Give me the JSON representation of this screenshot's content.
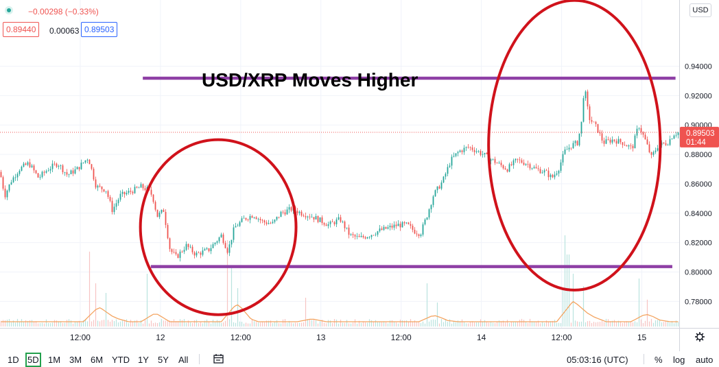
{
  "header": {
    "change": "−0.00298 (−0.33%)",
    "bid": "0.89440",
    "spread": "0.00063",
    "ask": "0.89503"
  },
  "currency_badge": "USD",
  "price_tag": {
    "price": "0.89503",
    "countdown": "01:44"
  },
  "toolbar": {
    "ranges": [
      "1D",
      "5D",
      "1M",
      "3M",
      "6M",
      "YTD",
      "1Y",
      "5Y",
      "All"
    ],
    "active_range": "5D",
    "clock": "05:03:16 (UTC)",
    "percent": "%",
    "log": "log",
    "auto": "auto"
  },
  "colors": {
    "up": "#26a69a",
    "down": "#ef5350",
    "box_down": "#ef5350",
    "box_up": "#2962ff",
    "line": "#8e3fa5",
    "circle": "#d0121b",
    "volume_ma": "#f4a460",
    "price_tag": "#ef5350"
  },
  "chart_data": {
    "type": "candlestick",
    "annotation_text": "USD/XRP Moves Higher",
    "y_ticks": [
      "0.94000",
      "0.92000",
      "0.90000",
      "0.88000",
      "0.86000",
      "0.84000",
      "0.82000",
      "0.80000",
      "0.78000"
    ],
    "ylim": [
      0.762,
      0.985
    ],
    "x_ticks": [
      {
        "label": "12:00",
        "x": 0.5
      },
      {
        "label": "12",
        "x": 1.0
      },
      {
        "label": "12:00",
        "x": 1.5
      },
      {
        "label": "13",
        "x": 2.0
      },
      {
        "label": "12:00",
        "x": 2.5
      },
      {
        "label": "14",
        "x": 3.0
      },
      {
        "label": "12:00",
        "x": 3.5
      },
      {
        "label": "15",
        "x": 4.0
      }
    ],
    "xlim": [
      0.0,
      4.233
    ],
    "close_series": [
      [
        0.0,
        0.868
      ],
      [
        0.03,
        0.852
      ],
      [
        0.07,
        0.862
      ],
      [
        0.12,
        0.87
      ],
      [
        0.18,
        0.874
      ],
      [
        0.24,
        0.864
      ],
      [
        0.3,
        0.87
      ],
      [
        0.36,
        0.874
      ],
      [
        0.42,
        0.866
      ],
      [
        0.48,
        0.87
      ],
      [
        0.55,
        0.878
      ],
      [
        0.6,
        0.858
      ],
      [
        0.66,
        0.856
      ],
      [
        0.7,
        0.842
      ],
      [
        0.75,
        0.852
      ],
      [
        0.82,
        0.855
      ],
      [
        0.88,
        0.858
      ],
      [
        0.92,
        0.856
      ],
      [
        0.95,
        0.852
      ],
      [
        0.98,
        0.838
      ],
      [
        1.02,
        0.842
      ],
      [
        1.06,
        0.815
      ],
      [
        1.1,
        0.81
      ],
      [
        1.16,
        0.818
      ],
      [
        1.22,
        0.812
      ],
      [
        1.3,
        0.815
      ],
      [
        1.38,
        0.825
      ],
      [
        1.42,
        0.814
      ],
      [
        1.46,
        0.83
      ],
      [
        1.52,
        0.836
      ],
      [
        1.58,
        0.839
      ],
      [
        1.64,
        0.834
      ],
      [
        1.7,
        0.833
      ],
      [
        1.75,
        0.84
      ],
      [
        1.82,
        0.843
      ],
      [
        1.88,
        0.84
      ],
      [
        1.94,
        0.838
      ],
      [
        1.98,
        0.836
      ],
      [
        2.05,
        0.832
      ],
      [
        2.12,
        0.836
      ],
      [
        2.18,
        0.825
      ],
      [
        2.24,
        0.823
      ],
      [
        2.3,
        0.825
      ],
      [
        2.36,
        0.828
      ],
      [
        2.42,
        0.83
      ],
      [
        2.48,
        0.832
      ],
      [
        2.54,
        0.832
      ],
      [
        2.58,
        0.828
      ],
      [
        2.62,
        0.826
      ],
      [
        2.66,
        0.838
      ],
      [
        2.7,
        0.852
      ],
      [
        2.76,
        0.862
      ],
      [
        2.81,
        0.876
      ],
      [
        2.86,
        0.882
      ],
      [
        2.92,
        0.885
      ],
      [
        2.98,
        0.882
      ],
      [
        3.04,
        0.878
      ],
      [
        3.1,
        0.874
      ],
      [
        3.16,
        0.87
      ],
      [
        3.22,
        0.876
      ],
      [
        3.28,
        0.874
      ],
      [
        3.34,
        0.87
      ],
      [
        3.4,
        0.868
      ],
      [
        3.44,
        0.864
      ],
      [
        3.48,
        0.87
      ],
      [
        3.52,
        0.882
      ],
      [
        3.56,
        0.886
      ],
      [
        3.6,
        0.888
      ],
      [
        3.63,
        0.905
      ],
      [
        3.64,
        0.928
      ],
      [
        3.67,
        0.905
      ],
      [
        3.72,
        0.898
      ],
      [
        3.76,
        0.888
      ],
      [
        3.82,
        0.89
      ],
      [
        3.88,
        0.888
      ],
      [
        3.94,
        0.884
      ],
      [
        3.98,
        0.9
      ],
      [
        4.02,
        0.89
      ],
      [
        4.06,
        0.878
      ],
      [
        4.1,
        0.886
      ],
      [
        4.16,
        0.888
      ],
      [
        4.2,
        0.894
      ],
      [
        4.233,
        0.895
      ]
    ],
    "volume_spikes": [
      {
        "x": 0.56,
        "v": 0.78
      },
      {
        "x": 0.6,
        "v": 0.45
      },
      {
        "x": 0.66,
        "v": 0.35
      },
      {
        "x": 0.92,
        "v": 0.55
      },
      {
        "x": 1.42,
        "v": 0.9
      },
      {
        "x": 1.44,
        "v": 0.62
      },
      {
        "x": 1.48,
        "v": 0.4
      },
      {
        "x": 1.9,
        "v": 0.3
      },
      {
        "x": 2.66,
        "v": 0.45
      },
      {
        "x": 2.72,
        "v": 0.25
      },
      {
        "x": 3.51,
        "v": 0.38
      },
      {
        "x": 3.52,
        "v": 0.95
      },
      {
        "x": 3.54,
        "v": 0.75
      },
      {
        "x": 3.57,
        "v": 0.55
      },
      {
        "x": 3.64,
        "v": 0.42
      },
      {
        "x": 3.98,
        "v": 0.5
      },
      {
        "x": 4.04,
        "v": 0.28
      }
    ],
    "resistance_line": {
      "x": [
        0.89,
        4.21
      ],
      "y": 0.9318
    },
    "support_line": {
      "x": [
        0.94,
        4.19
      ],
      "y": 0.8037
    },
    "circles": [
      {
        "cx": 1.36,
        "cy": 0.8305,
        "rx": 0.97,
        "ry": 0.0595
      },
      {
        "cx": 3.58,
        "cy": 0.8862,
        "rx": 1.07,
        "ry": 0.0985
      }
    ]
  }
}
